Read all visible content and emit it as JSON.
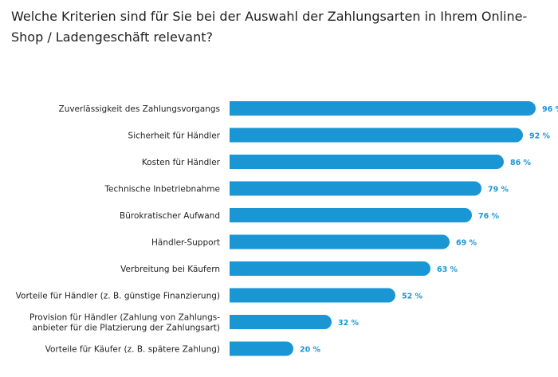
{
  "chart_data": {
    "type": "bar",
    "orientation": "horizontal",
    "title": "Welche Kriterien sind für Sie bei der Auswahl der Zahlungsarten in Ihrem Online-Shop / Ladengeschäft relevant?",
    "categories": [
      [
        "Zuverlässigkeit des Zahlungsvorgangs"
      ],
      [
        "Sicherheit für Händler"
      ],
      [
        "Kosten für Händler"
      ],
      [
        "Technische Inbetriebnahme"
      ],
      [
        "Bürokratischer Aufwand"
      ],
      [
        "Händler-Support"
      ],
      [
        "Verbreitung bei Käufern"
      ],
      [
        "Vorteile für Händler (z. B. günstige Finanzierung)"
      ],
      [
        "Provision für Händler (Zahlung von Zahlungs-",
        "anbieter für die Platzierung der Zahlungsart)"
      ],
      [
        "Vorteile für Käufer (z. B. spätere Zahlung)"
      ]
    ],
    "values": [
      96,
      92,
      86,
      79,
      76,
      69,
      63,
      52,
      32,
      20
    ],
    "value_labels": [
      "96 %",
      "92 %",
      "86 %",
      "79 %",
      "76 %",
      "69 %",
      "63 %",
      "52 %",
      "32 %",
      "20 %"
    ],
    "xlim": [
      0,
      100
    ],
    "grid": false,
    "legend": "none",
    "colors": {
      "bar": "#1a96d4",
      "value_label": "#1a96d4"
    }
  }
}
